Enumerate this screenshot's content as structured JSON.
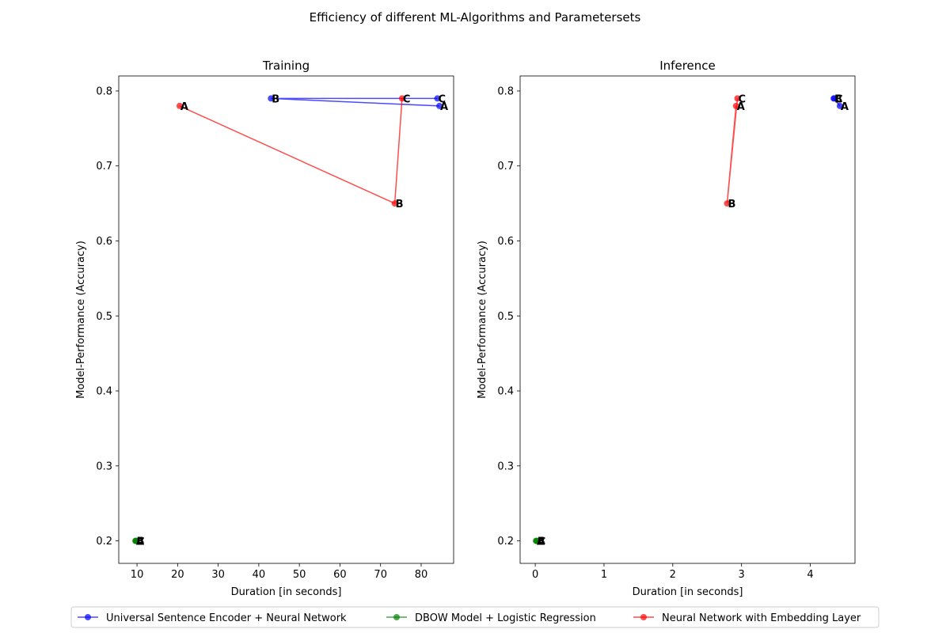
{
  "figure": {
    "title": "Efficiency of different ML-Algorithms and Parametersets"
  },
  "legend": {
    "items": [
      {
        "label": "Universal Sentence Encoder + Neural Network",
        "color": "#0000ff"
      },
      {
        "label": "DBOW Model + Logistic Regression",
        "color": "#008000"
      },
      {
        "label": "Neural Network with Embedding Layer",
        "color": "#ff0000"
      }
    ]
  },
  "chart_data": [
    {
      "type": "line",
      "title": "Training",
      "xlabel": "Duration [in seconds]",
      "ylabel": "Model-Performance (Accuracy)",
      "xlim": [
        5.5,
        88
      ],
      "ylim": [
        0.17,
        0.82
      ],
      "xticks": [
        10,
        20,
        30,
        40,
        50,
        60,
        70,
        80
      ],
      "yticks": [
        0.2,
        0.3,
        0.4,
        0.5,
        0.6,
        0.7,
        0.8
      ],
      "xtick_labels": [
        "10",
        "20",
        "30",
        "40",
        "50",
        "60",
        "70",
        "80"
      ],
      "ytick_labels": [
        "0.2",
        "0.3",
        "0.4",
        "0.5",
        "0.6",
        "0.7",
        "0.8"
      ],
      "series": [
        {
          "name": "Universal Sentence Encoder + Neural Network",
          "color": "#0000ff",
          "points": [
            {
              "x": 84.5,
              "y": 0.78,
              "label": "A"
            },
            {
              "x": 43,
              "y": 0.79,
              "label": "B"
            },
            {
              "x": 84,
              "y": 0.79,
              "label": "C"
            }
          ]
        },
        {
          "name": "DBOW Model + Logistic Regression",
          "color": "#008000",
          "points": [
            {
              "x": 9.6,
              "y": 0.2,
              "label": "A"
            },
            {
              "x": 9.7,
              "y": 0.2,
              "label": "B"
            },
            {
              "x": 9.8,
              "y": 0.2,
              "label": "C"
            }
          ]
        },
        {
          "name": "Neural Network with Embedding Layer",
          "color": "#ff0000",
          "points": [
            {
              "x": 20.5,
              "y": 0.78,
              "label": "A"
            },
            {
              "x": 73.5,
              "y": 0.65,
              "label": "B"
            },
            {
              "x": 75.3,
              "y": 0.79,
              "label": "C"
            }
          ]
        }
      ]
    },
    {
      "type": "line",
      "title": "Inference",
      "xlabel": "Duration [in seconds]",
      "ylabel": "Model-Performance (Accuracy)",
      "xlim": [
        -0.22,
        4.65
      ],
      "ylim": [
        0.17,
        0.82
      ],
      "xticks": [
        0,
        1,
        2,
        3,
        4
      ],
      "yticks": [
        0.2,
        0.3,
        0.4,
        0.5,
        0.6,
        0.7,
        0.8
      ],
      "xtick_labels": [
        "0",
        "1",
        "2",
        "3",
        "4"
      ],
      "ytick_labels": [
        "0.2",
        "0.3",
        "0.4",
        "0.5",
        "0.6",
        "0.7",
        "0.8"
      ],
      "series": [
        {
          "name": "Universal Sentence Encoder + Neural Network",
          "color": "#0000ff",
          "points": [
            {
              "x": 4.43,
              "y": 0.78,
              "label": "A"
            },
            {
              "x": 4.34,
              "y": 0.79,
              "label": "B"
            },
            {
              "x": 4.35,
              "y": 0.79,
              "label": "C"
            }
          ]
        },
        {
          "name": "DBOW Model + Logistic Regression",
          "color": "#008000",
          "points": [
            {
              "x": 0.01,
              "y": 0.2,
              "label": "A"
            },
            {
              "x": 0.02,
              "y": 0.2,
              "label": "B"
            },
            {
              "x": 0.03,
              "y": 0.2,
              "label": "C"
            }
          ]
        },
        {
          "name": "Neural Network with Embedding Layer",
          "color": "#ff0000",
          "points": [
            {
              "x": 2.92,
              "y": 0.78,
              "label": "A"
            },
            {
              "x": 2.79,
              "y": 0.65,
              "label": "B"
            },
            {
              "x": 2.94,
              "y": 0.79,
              "label": "C"
            }
          ]
        }
      ]
    }
  ]
}
